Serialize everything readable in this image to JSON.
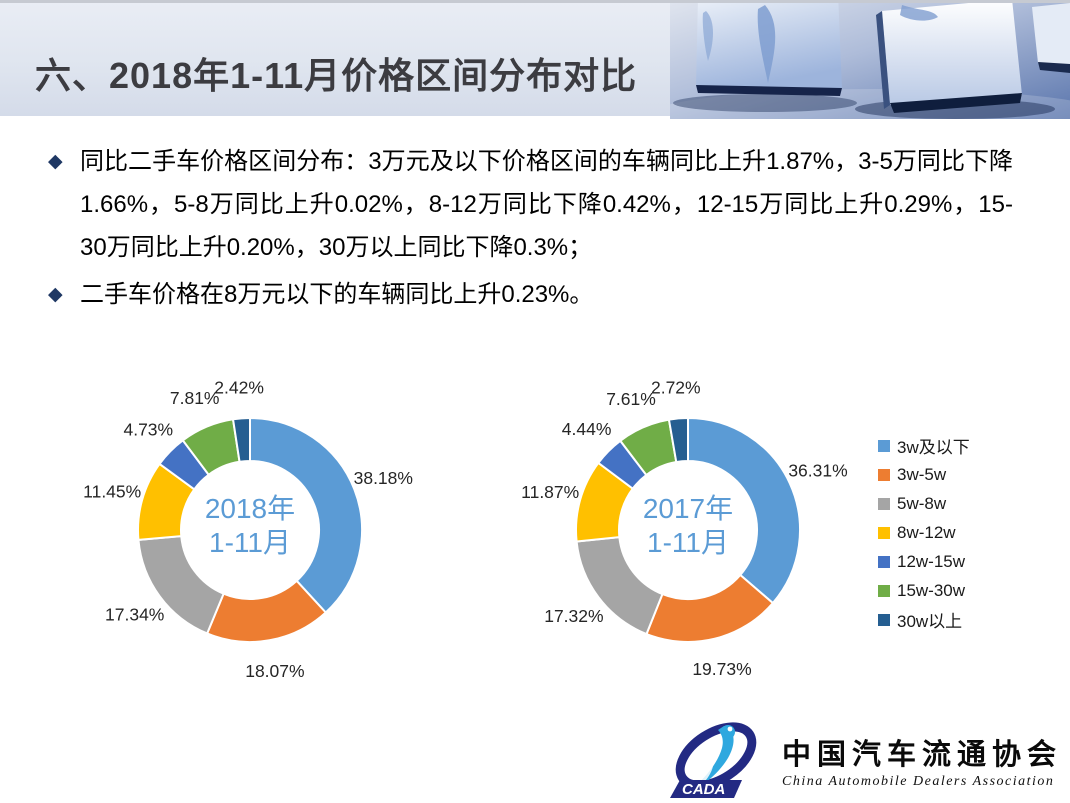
{
  "header": {
    "title": "六、2018年1-11月价格区间分布对比"
  },
  "bullets": [
    {
      "marker": "◆",
      "text": "同比二手车价格区间分布：3万元及以下价格区间的车辆同比上升1.87%，3-5万同比下降1.66%，5-8万同比上升0.02%，8-12万同比下降0.42%，12-15万同比上升0.29%，15-30万同比上升0.20%，30万以上同比下降0.3%；"
    },
    {
      "marker": "◆",
      "text": "二手车价格在8万元以下的车辆同比上升0.23%。"
    }
  ],
  "chart_data": [
    {
      "type": "pie",
      "subtype": "donut",
      "center_label_lines": [
        "2018年",
        "1-11月"
      ],
      "categories": [
        "3w及以下",
        "3w-5w",
        "5w-8w",
        "8w-12w",
        "12w-15w",
        "15w-30w",
        "30w以上"
      ],
      "values": [
        38.18,
        18.07,
        17.34,
        11.45,
        4.73,
        7.81,
        2.42
      ],
      "labels": [
        "38.18%",
        "18.07%",
        "17.34%",
        "11.45%",
        "4.73%",
        "7.81%",
        "2.42%"
      ],
      "colors": [
        "#5B9BD5",
        "#ED7D31",
        "#A5A5A5",
        "#FFC000",
        "#4472C4",
        "#70AD47",
        "#255E91"
      ],
      "start_angle": 0,
      "direction": "clockwise",
      "legend_position": "right-shared"
    },
    {
      "type": "pie",
      "subtype": "donut",
      "center_label_lines": [
        "2017年",
        "1-11月"
      ],
      "categories": [
        "3w及以下",
        "3w-5w",
        "5w-8w",
        "8w-12w",
        "12w-15w",
        "15w-30w",
        "30w以上"
      ],
      "values": [
        36.31,
        19.73,
        17.32,
        11.87,
        4.44,
        7.61,
        2.72
      ],
      "labels": [
        "36.31%",
        "19.73%",
        "17.32%",
        "11.87%",
        "4.44%",
        "7.61%",
        "2.72%"
      ],
      "colors": [
        "#5B9BD5",
        "#ED7D31",
        "#A5A5A5",
        "#FFC000",
        "#4472C4",
        "#70AD47",
        "#255E91"
      ],
      "start_angle": 0,
      "direction": "clockwise",
      "legend_position": "right-shared"
    }
  ],
  "legend": {
    "items": [
      {
        "label": "3w及以下",
        "color": "#5B9BD5"
      },
      {
        "label": "3w-5w",
        "color": "#ED7D31"
      },
      {
        "label": "5w-8w",
        "color": "#A5A5A5"
      },
      {
        "label": "8w-12w",
        "color": "#FFC000"
      },
      {
        "label": "12w-15w",
        "color": "#4472C4"
      },
      {
        "label": "15w-30w",
        "color": "#70AD47"
      },
      {
        "label": "30w以上",
        "color": "#255E91"
      }
    ]
  },
  "footer_logo": {
    "acronym": "CADA",
    "cn": "中国汽车流通协会",
    "en": "China  Automobile  Dealers  Association"
  },
  "colors": {
    "center_label": "#5B9BD5",
    "slice_label": "#262626",
    "bullet_marker": "#1F3864",
    "title_text": "#3C3C41",
    "logo_navy": "#232A83",
    "logo_cyan": "#2FA8DF"
  }
}
